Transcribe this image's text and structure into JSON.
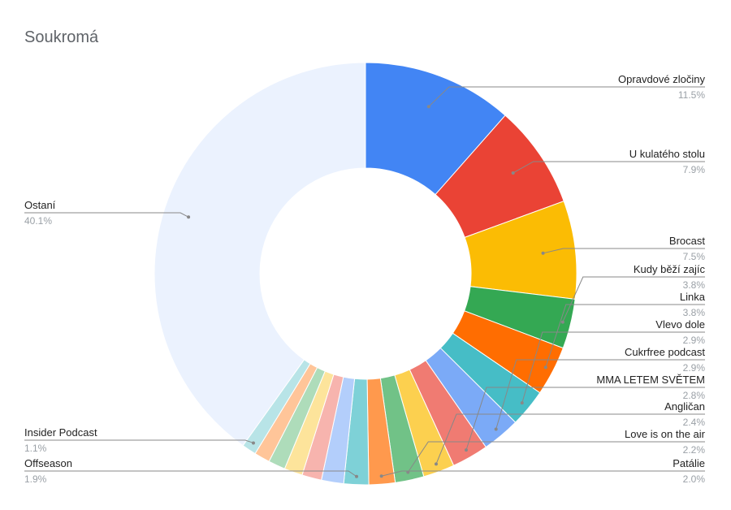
{
  "chart_data": {
    "type": "pie",
    "donut": true,
    "title": "Soukromá",
    "slices": [
      {
        "name": "Opravdové zločiny",
        "label": "11.5%",
        "value": 11.5,
        "color": "#4285f4",
        "side": "right"
      },
      {
        "name": "U kulatého stolu",
        "label": "7.9%",
        "value": 7.9,
        "color": "#ea4335",
        "side": "right"
      },
      {
        "name": "Brocast",
        "label": "7.5%",
        "value": 7.5,
        "color": "#fbbc04",
        "side": "right"
      },
      {
        "name": "Kudy běží zajíc",
        "label": "3.8%",
        "value": 3.8,
        "color": "#34a853",
        "side": "right"
      },
      {
        "name": "Linka",
        "label": "3.8%",
        "value": 3.8,
        "color": "#ff6d01",
        "side": "right"
      },
      {
        "name": "Vlevo dole",
        "label": "2.9%",
        "value": 2.9,
        "color": "#46bdc6",
        "side": "right"
      },
      {
        "name": "Cukrfree podcast",
        "label": "2.9%",
        "value": 2.9,
        "color": "#7baaf7",
        "side": "right"
      },
      {
        "name": "MMA LETEM SVĚTEM",
        "label": "2.8%",
        "value": 2.8,
        "color": "#f07b72",
        "side": "right"
      },
      {
        "name": "Angličan",
        "label": "2.4%",
        "value": 2.4,
        "color": "#fcd04f",
        "side": "right"
      },
      {
        "name": "Love is on the air",
        "label": "2.2%",
        "value": 2.2,
        "color": "#71c287",
        "side": "right"
      },
      {
        "name": "Patálie",
        "label": "2.0%",
        "value": 2.0,
        "color": "#ff994d",
        "side": "right"
      },
      {
        "name": "Offseason",
        "label": "1.9%",
        "value": 1.9,
        "color": "#7ed1d7",
        "side": "left"
      },
      {
        "name": "",
        "label": "",
        "value": 1.7,
        "color": "#b3cefb",
        "side": "none"
      },
      {
        "name": "",
        "label": "",
        "value": 1.5,
        "color": "#f7b4ae",
        "side": "none"
      },
      {
        "name": "",
        "label": "",
        "value": 1.4,
        "color": "#fde49b",
        "side": "none"
      },
      {
        "name": "",
        "label": "",
        "value": 1.3,
        "color": "#aedcba",
        "side": "none"
      },
      {
        "name": "",
        "label": "",
        "value": 1.2,
        "color": "#ffc599",
        "side": "none"
      },
      {
        "name": "Insider Podcast",
        "label": "1.1%",
        "value": 1.1,
        "color": "#b8e4e7",
        "side": "left"
      },
      {
        "name": "Ostaní",
        "label": "40.1%",
        "value": 40.1,
        "color": "#ebf2fe",
        "side": "left"
      }
    ]
  }
}
